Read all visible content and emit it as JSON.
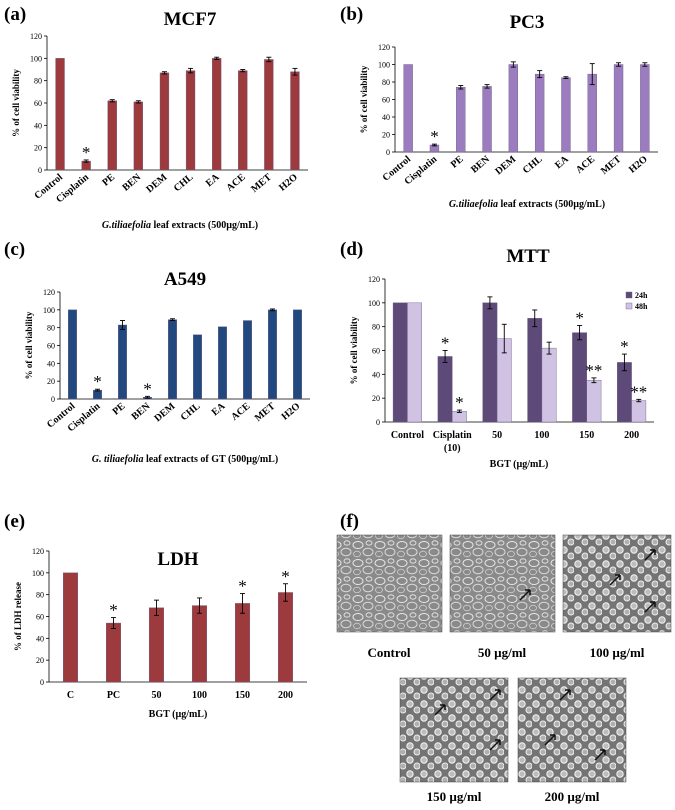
{
  "colors": {
    "red": "#9c3a3d",
    "purple": "#9a7cbf",
    "blue": "#22497f",
    "lightpurple": "#cfc2e3"
  },
  "chart_data": [
    {
      "panel": "(a)",
      "type": "bar",
      "title": "MCF7",
      "ylabel": "% of cell viability",
      "xlabel_italic": "G.tiliaefolia",
      "xlabel_rest": " leaf extracts (500µg/mL)",
      "ylim": [
        0,
        120
      ],
      "yticks": [
        "0",
        "20",
        "40",
        "60",
        "80",
        "100",
        "120"
      ],
      "categories": [
        "Control",
        "Cisplatin",
        "PE",
        "BEN",
        "DEM",
        "CHL",
        "EA",
        "ACE",
        "MET",
        "H2O"
      ],
      "values": [
        100,
        8,
        62,
        61,
        87,
        89,
        100,
        89,
        99,
        88
      ],
      "errors": [
        0,
        1,
        1,
        1,
        1,
        2,
        1,
        1,
        2,
        3
      ],
      "stars": [
        "",
        "*",
        "",
        "",
        "",
        "",
        "",
        "",
        "",
        ""
      ]
    },
    {
      "panel": "(b)",
      "type": "bar",
      "title": "PC3",
      "ylabel": "% of cell viability",
      "xlabel_italic": "G.tiliaefolia",
      "xlabel_rest": " leaf extracts (500µg/mL)",
      "ylim": [
        0,
        120
      ],
      "yticks": [
        "0",
        "20",
        "40",
        "60",
        "80",
        "100",
        "120"
      ],
      "categories": [
        "Control",
        "Cisplatin",
        "PE",
        "BEN",
        "DEM",
        "CHL",
        "EA",
        "ACE",
        "MET",
        "H2O"
      ],
      "values": [
        100,
        8,
        74,
        75,
        100,
        89,
        85,
        89,
        100,
        100
      ],
      "errors": [
        0,
        1,
        2,
        2,
        3,
        4,
        1,
        12,
        2,
        2
      ],
      "stars": [
        "",
        "*",
        "",
        "",
        "",
        "",
        "",
        "",
        "",
        ""
      ]
    },
    {
      "panel": "(c)",
      "type": "bar",
      "title": "A549",
      "ylabel": "% of cell viability",
      "xlabel_italic": "G. tiliaefolia",
      "xlabel_rest": " leaf extracts of GT (500µg/mL)",
      "ylim": [
        0,
        120
      ],
      "yticks": [
        "0",
        "20",
        "40",
        "60",
        "80",
        "100",
        "120"
      ],
      "categories": [
        "Control",
        "Cisplatin",
        "PE",
        "BEN",
        "DEM",
        "CHL",
        "EA",
        "ACE",
        "MET",
        "H2O"
      ],
      "values": [
        100,
        10,
        83,
        2,
        89,
        72,
        81,
        88,
        100,
        100
      ],
      "errors": [
        0,
        1,
        5,
        1,
        1,
        0,
        0,
        0,
        1,
        0
      ],
      "stars": [
        "",
        "*",
        "",
        "*",
        "",
        "",
        "",
        "",
        "",
        ""
      ]
    },
    {
      "panel": "(d)",
      "type": "bar",
      "title": "MTT",
      "ylabel": "% of cell viability",
      "xlabel": "BGT (µg/mL)",
      "ylim": [
        0,
        120
      ],
      "yticks": [
        "0",
        "20",
        "40",
        "60",
        "80",
        "100",
        "120"
      ],
      "categories": [
        "Control",
        "Cisplatin (10)",
        "50",
        "100",
        "150",
        "200"
      ],
      "series": [
        {
          "name": "24h",
          "values": [
            100,
            55,
            100,
            87,
            75,
            50
          ],
          "errors": [
            0,
            5,
            5,
            7,
            6,
            7
          ],
          "stars": [
            "",
            "*",
            "",
            "",
            "*",
            "*"
          ]
        },
        {
          "name": "48h",
          "values": [
            100,
            9,
            70,
            62,
            35,
            18
          ],
          "errors": [
            0,
            1,
            12,
            5,
            2,
            1
          ],
          "stars": [
            "",
            "*",
            "",
            "",
            "**",
            "**"
          ]
        }
      ]
    },
    {
      "panel": "(e)",
      "type": "bar",
      "title": "LDH",
      "ylabel": "% of LDH release",
      "xlabel": "BGT (µg/mL)",
      "ylim": [
        0,
        120
      ],
      "yticks": [
        "0",
        "20",
        "40",
        "60",
        "80",
        "100",
        "120"
      ],
      "categories": [
        "C",
        "PC",
        "50",
        "100",
        "150",
        "200"
      ],
      "values": [
        100,
        54,
        68,
        70,
        72,
        82
      ],
      "errors": [
        0,
        5,
        7,
        7,
        9,
        8
      ],
      "stars": [
        "",
        "*",
        "",
        "",
        "*",
        "*"
      ]
    }
  ],
  "images": {
    "panel": "(f)",
    "captions": [
      "Control",
      "50 µg/ml",
      "100 µg/ml",
      "150 µg/ml",
      "200 µg/ml"
    ]
  }
}
